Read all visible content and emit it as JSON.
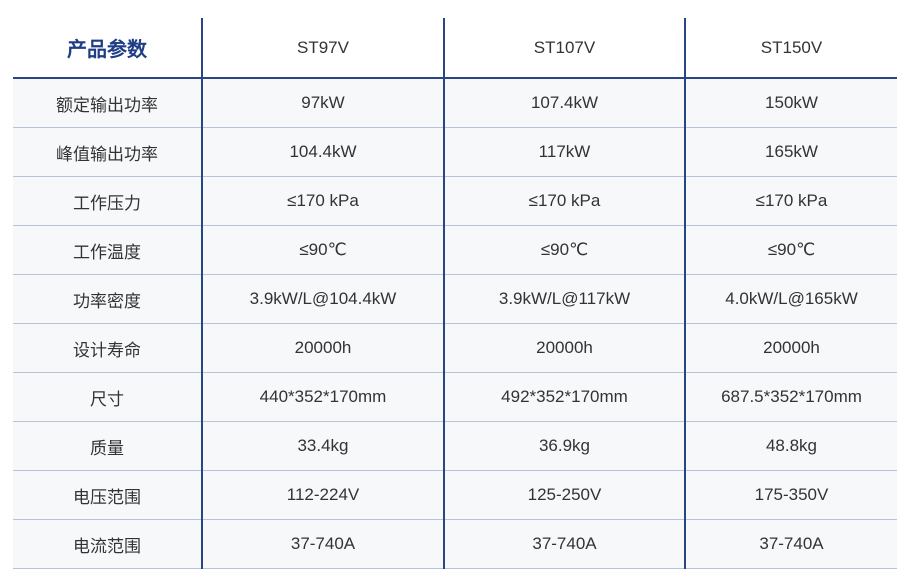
{
  "table": {
    "header": [
      "产品参数",
      "ST97V",
      "ST107V",
      "ST150V"
    ],
    "rows": [
      [
        "额定输出功率",
        "97kW",
        "107.4kW",
        "150kW"
      ],
      [
        "峰值输出功率",
        "104.4kW",
        "117kW",
        "165kW"
      ],
      [
        "工作压力",
        "≤170 kPa",
        "≤170 kPa",
        "≤170 kPa"
      ],
      [
        "工作温度",
        "≤90℃",
        "≤90℃",
        "≤90℃"
      ],
      [
        "功率密度",
        "3.9kW/L@104.4kW",
        "3.9kW/L@117kW",
        "4.0kW/L@165kW"
      ],
      [
        "设计寿命",
        "20000h",
        "20000h",
        "20000h"
      ],
      [
        "尺寸",
        "440*352*170mm",
        "492*352*170mm",
        "687.5*352*170mm"
      ],
      [
        "质量",
        "33.4kg",
        "36.9kg",
        "48.8kg"
      ],
      [
        "电压范围",
        "112-224V",
        "125-250V",
        "175-350V"
      ],
      [
        "电流范围",
        "37-740A",
        "37-740A",
        "37-740A"
      ]
    ]
  }
}
